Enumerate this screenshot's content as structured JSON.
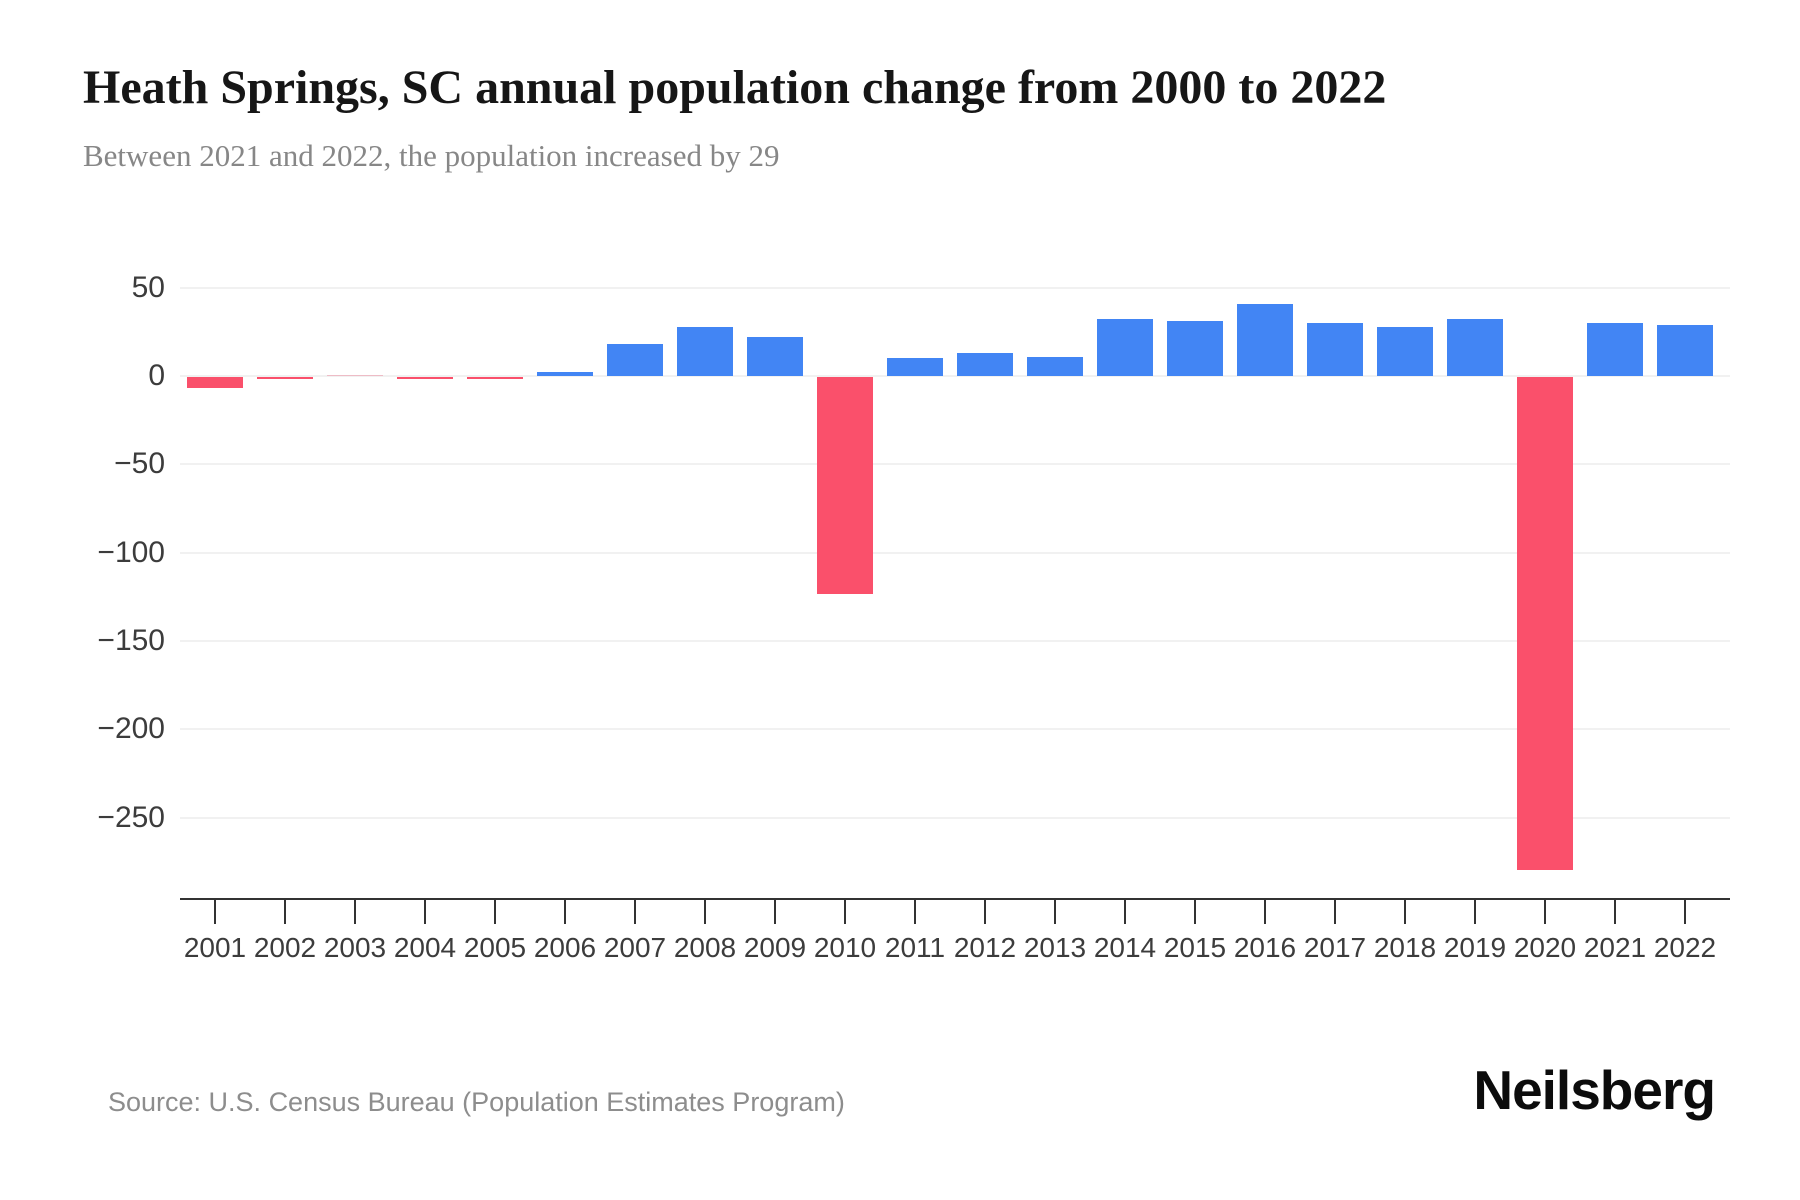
{
  "header": {
    "title": "Heath Springs, SC annual population change from 2000 to 2022",
    "subtitle": "Between 2021 and 2022, the population increased by 29"
  },
  "footer": {
    "source": "Source: U.S. Census Bureau (Population Estimates Program)",
    "brand": "Neilsberg"
  },
  "chart_data": {
    "type": "bar",
    "title": "Heath Springs, SC annual population change from 2000 to 2022",
    "xlabel": "",
    "ylabel": "",
    "categories": [
      "2001",
      "2002",
      "2003",
      "2004",
      "2005",
      "2006",
      "2007",
      "2008",
      "2009",
      "2010",
      "2011",
      "2012",
      "2013",
      "2014",
      "2015",
      "2016",
      "2017",
      "2018",
      "2019",
      "2020",
      "2021",
      "2022"
    ],
    "values": [
      -6,
      -1,
      0,
      -1,
      -1,
      2,
      18,
      28,
      22,
      -123,
      10,
      13,
      11,
      32,
      31,
      41,
      30,
      28,
      32,
      -279,
      30,
      29
    ],
    "y_ticks": [
      50,
      0,
      -50,
      -100,
      -150,
      -200,
      -250
    ],
    "ylim": [
      -290,
      55
    ],
    "grid": "horizontal",
    "legend_position": "none",
    "colors": {
      "positive": "#4285f4",
      "negative": "#fa506b",
      "zero": "#eebcc6",
      "gridline": "#f1f1f1",
      "axis": "#333333",
      "tick_label": "#3c3c3c"
    }
  }
}
